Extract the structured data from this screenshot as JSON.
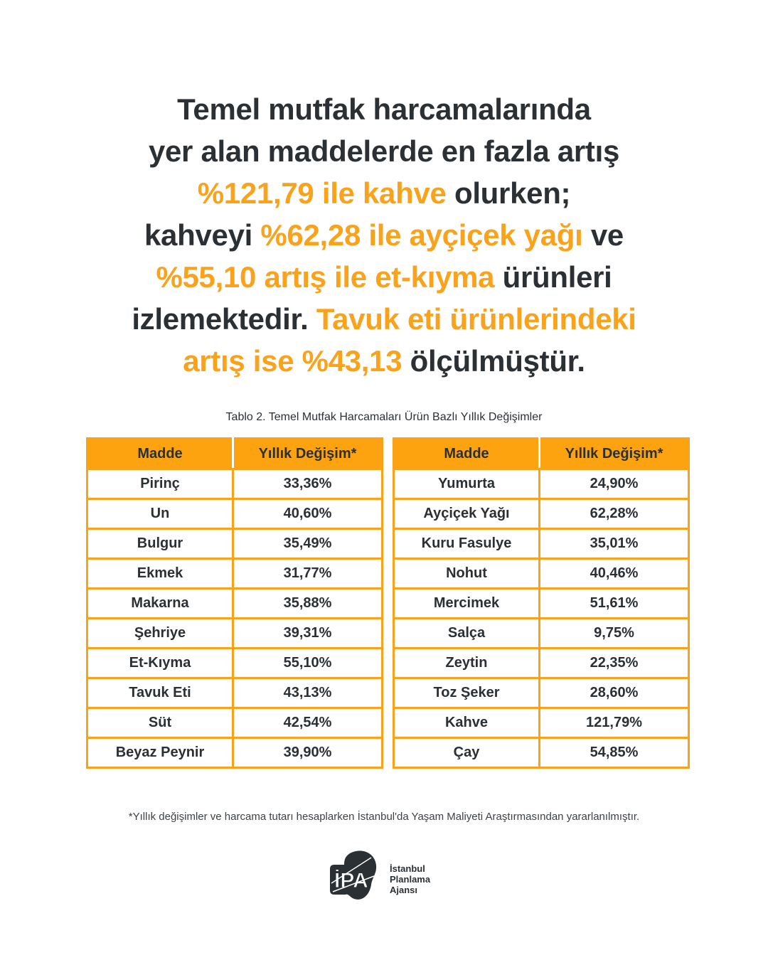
{
  "headline": {
    "lines": [
      [
        {
          "text": "Temel mutfak harcamalarında",
          "hl": false
        }
      ],
      [
        {
          "text": "yer alan maddelerde en fazla artış",
          "hl": false
        }
      ],
      [
        {
          "text": "%121,79 ile kahve",
          "hl": true
        },
        {
          "text": " olurken;",
          "hl": false
        }
      ],
      [
        {
          "text": "kahveyi ",
          "hl": false
        },
        {
          "text": "%62,28 ile ayçiçek yağı",
          "hl": true
        },
        {
          "text": " ve",
          "hl": false
        }
      ],
      [
        {
          "text": "%55,10 artış ile et-kıyma",
          "hl": true
        },
        {
          "text": " ürünleri",
          "hl": false
        }
      ],
      [
        {
          "text": "izlemektedir. ",
          "hl": false
        },
        {
          "text": "Tavuk eti ürünlerindeki",
          "hl": true
        }
      ],
      [
        {
          "text": "artış ise %43,13",
          "hl": true
        },
        {
          "text": " ölçülmüştür.",
          "hl": false
        }
      ]
    ]
  },
  "colors": {
    "accent": "#f9a21b",
    "text": "#2b3035",
    "background": "#ffffff"
  },
  "table_caption": "Tablo 2. Temel Mutfak Harcamaları Ürün Bazlı Yıllık Değişimler",
  "tables": {
    "left": {
      "headers": [
        "Madde",
        "Yıllık Değişim*"
      ],
      "rows": [
        [
          "Pirinç",
          "33,36%"
        ],
        [
          "Un",
          "40,60%"
        ],
        [
          "Bulgur",
          "35,49%"
        ],
        [
          "Ekmek",
          "31,77%"
        ],
        [
          "Makarna",
          "35,88%"
        ],
        [
          "Şehriye",
          "39,31%"
        ],
        [
          "Et-Kıyma",
          "55,10%"
        ],
        [
          "Tavuk Eti",
          "43,13%"
        ],
        [
          "Süt",
          "42,54%"
        ],
        [
          "Beyaz Peynir",
          "39,90%"
        ]
      ]
    },
    "right": {
      "headers": [
        "Madde",
        "Yıllık Değişim*"
      ],
      "rows": [
        [
          "Yumurta",
          "24,90%"
        ],
        [
          "Ayçiçek Yağı",
          "62,28%"
        ],
        [
          "Kuru Fasulye",
          "35,01%"
        ],
        [
          "Nohut",
          "40,46%"
        ],
        [
          "Mercimek",
          "51,61%"
        ],
        [
          "Salça",
          "9,75%"
        ],
        [
          "Zeytin",
          "22,35%"
        ],
        [
          "Toz Şeker",
          "28,60%"
        ],
        [
          "Kahve",
          "121,79%"
        ],
        [
          "Çay",
          "54,85%"
        ]
      ]
    }
  },
  "chart_data": {
    "type": "table",
    "title": "Tablo 2. Temel Mutfak Harcamaları Ürün Bazlı Yıllık Değişimler",
    "columns": [
      "Madde",
      "Yıllık Değişim (%)"
    ],
    "categories": [
      "Pirinç",
      "Un",
      "Bulgur",
      "Ekmek",
      "Makarna",
      "Şehriye",
      "Et-Kıyma",
      "Tavuk Eti",
      "Süt",
      "Beyaz Peynir",
      "Yumurta",
      "Ayçiçek Yağı",
      "Kuru Fasulye",
      "Nohut",
      "Mercimek",
      "Salça",
      "Zeytin",
      "Toz Şeker",
      "Kahve",
      "Çay"
    ],
    "values": [
      33.36,
      40.6,
      35.49,
      31.77,
      35.88,
      39.31,
      55.1,
      43.13,
      42.54,
      39.9,
      24.9,
      62.28,
      35.01,
      40.46,
      51.61,
      9.75,
      22.35,
      28.6,
      121.79,
      54.85
    ]
  },
  "footnote": "*Yıllık değişimler ve harcama tutarı hesaplarken İstanbul'da Yaşam Maliyeti Araştırmasından yararlanılmıştır.",
  "logo": {
    "mark": "İPA",
    "lines": [
      "İstanbul",
      "Planlama",
      "Ajansı"
    ]
  }
}
